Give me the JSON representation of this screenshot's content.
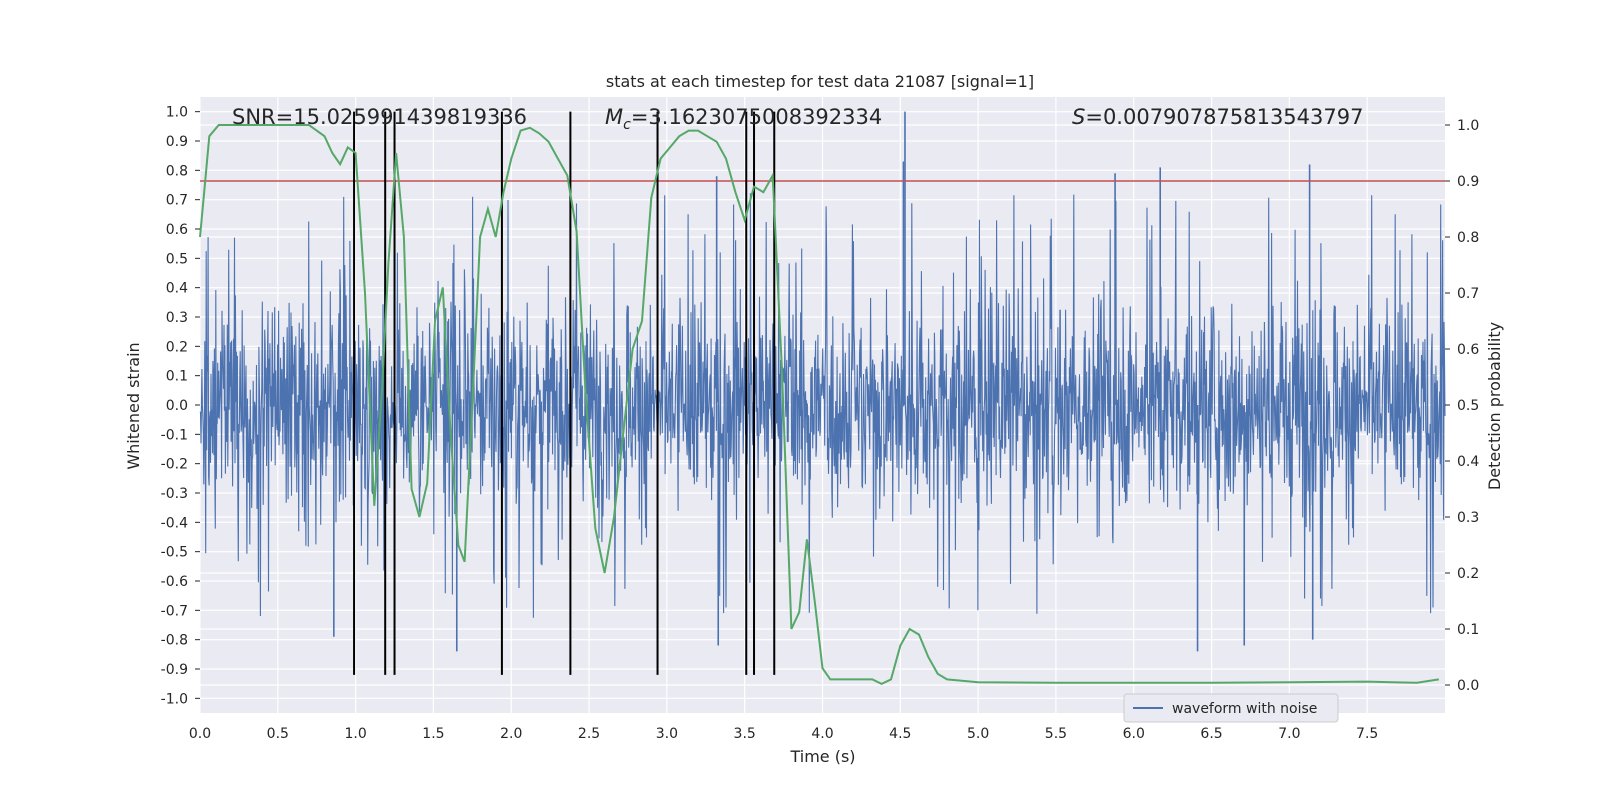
{
  "chart_data": {
    "type": "line",
    "title": "stats at each timestep for test data 21087 [signal=1]",
    "xlabel": "Time (s)",
    "ylabel_left": "Whitened strain",
    "ylabel_right": "Detection probability",
    "xlim": [
      0.0,
      8.0
    ],
    "ylim_left": [
      -1.05,
      1.05
    ],
    "ylim_right": [
      -0.05,
      1.05
    ],
    "xticks": [
      "0.0",
      "0.5",
      "1.0",
      "1.5",
      "2.0",
      "2.5",
      "3.0",
      "3.5",
      "4.0",
      "4.5",
      "5.0",
      "5.5",
      "6.0",
      "6.5",
      "7.0",
      "7.5"
    ],
    "yticks_left": [
      "-1.0",
      "-0.9",
      "-0.8",
      "-0.7",
      "-0.6",
      "-0.5",
      "-0.4",
      "-0.3",
      "-0.2",
      "-0.1",
      "0.0",
      "0.1",
      "0.2",
      "0.3",
      "0.4",
      "0.5",
      "0.6",
      "0.7",
      "0.8",
      "0.9",
      "1.0"
    ],
    "yticks_right": [
      "0.0",
      "0.1",
      "0.2",
      "0.3",
      "0.4",
      "0.5",
      "0.6",
      "0.7",
      "0.8",
      "0.9",
      "1.0"
    ],
    "grid": true,
    "colors": {
      "background": "#eaeaf2",
      "waveform": "#4c72b0",
      "probability": "#55a868",
      "threshold": "#c44e52",
      "vlines": "#000000"
    },
    "annotations": {
      "snr": "SNR=15.025991439819336",
      "mc_symbol": "M",
      "mc_sub": "c",
      "mc_value": "=3.1623075008392334",
      "s_symbol": "S",
      "s_value": "=0.007907875813543797"
    },
    "legend": {
      "label": "waveform with noise",
      "placement": "lower-right"
    },
    "waveform": {
      "name": "waveform with noise",
      "t_start": 0.0,
      "t_end": 8.0,
      "envelope_min": -0.84,
      "envelope_max": 1.0,
      "dense_band": [
        -0.35,
        0.35
      ],
      "peak_spikes": [
        {
          "t": 4.53,
          "v": 1.0
        },
        {
          "t": 4.52,
          "v": 0.83
        },
        {
          "t": 7.13,
          "v": 0.82
        },
        {
          "t": 6.17,
          "v": 0.81
        },
        {
          "t": 5.88,
          "v": 0.79
        },
        {
          "t": 3.32,
          "v": 0.78
        },
        {
          "t": 1.65,
          "v": -0.84
        },
        {
          "t": 6.41,
          "v": -0.84
        },
        {
          "t": 3.33,
          "v": -0.82
        },
        {
          "t": 6.71,
          "v": -0.82
        },
        {
          "t": 7.15,
          "v": -0.8
        },
        {
          "t": 0.86,
          "v": -0.79
        }
      ]
    },
    "threshold": {
      "value": 0.9
    },
    "vlines": [
      0.99,
      1.19,
      1.25,
      1.94,
      2.38,
      2.94,
      3.51,
      3.56,
      3.69
    ],
    "vline_range": [
      -0.92,
      1.0
    ],
    "detection_probability": {
      "name": "Detection probability",
      "t": [
        0.0,
        0.03,
        0.06,
        0.12,
        0.2,
        0.4,
        0.7,
        0.8,
        0.85,
        0.9,
        0.95,
        1.0,
        1.06,
        1.12,
        1.17,
        1.21,
        1.26,
        1.31,
        1.36,
        1.41,
        1.46,
        1.51,
        1.56,
        1.61,
        1.66,
        1.7,
        1.75,
        1.8,
        1.85,
        1.9,
        1.95,
        2.0,
        2.06,
        2.12,
        2.18,
        2.24,
        2.3,
        2.36,
        2.42,
        2.48,
        2.54,
        2.6,
        2.66,
        2.72,
        2.78,
        2.84,
        2.9,
        2.96,
        3.02,
        3.08,
        3.14,
        3.2,
        3.26,
        3.32,
        3.38,
        3.44,
        3.5,
        3.56,
        3.62,
        3.68,
        3.74,
        3.8,
        3.85,
        3.9,
        3.95,
        4.0,
        4.05,
        4.2,
        4.32,
        4.38,
        4.44,
        4.5,
        4.56,
        4.62,
        4.68,
        4.74,
        4.8,
        5.0,
        5.5,
        6.0,
        6.5,
        7.0,
        7.5,
        7.82,
        7.96
      ],
      "p": [
        0.8,
        0.89,
        0.98,
        1.0,
        1.0,
        1.0,
        1.0,
        0.98,
        0.95,
        0.93,
        0.96,
        0.95,
        0.7,
        0.32,
        0.53,
        0.75,
        0.95,
        0.8,
        0.35,
        0.3,
        0.36,
        0.65,
        0.71,
        0.45,
        0.25,
        0.22,
        0.5,
        0.8,
        0.85,
        0.8,
        0.88,
        0.94,
        0.99,
        0.995,
        0.985,
        0.97,
        0.94,
        0.91,
        0.81,
        0.51,
        0.28,
        0.2,
        0.3,
        0.45,
        0.6,
        0.65,
        0.87,
        0.94,
        0.96,
        0.98,
        0.99,
        0.99,
        0.98,
        0.97,
        0.94,
        0.88,
        0.83,
        0.89,
        0.88,
        0.91,
        0.56,
        0.1,
        0.13,
        0.26,
        0.15,
        0.03,
        0.01,
        0.01,
        0.01,
        0.002,
        0.01,
        0.07,
        0.1,
        0.09,
        0.05,
        0.02,
        0.01,
        0.005,
        0.004,
        0.004,
        0.004,
        0.005,
        0.006,
        0.004,
        0.01
      ]
    }
  }
}
